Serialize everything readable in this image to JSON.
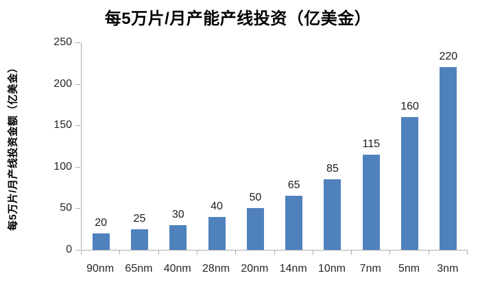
{
  "chart_data": {
    "type": "bar",
    "title": "每5万片/月产能产线投资（亿美金）",
    "ylabel": "每5万片/月产线投资金额（亿美金）",
    "xlabel": "",
    "categories": [
      "90nm",
      "65nm",
      "40nm",
      "28nm",
      "20nm",
      "14nm",
      "10nm",
      "7nm",
      "5nm",
      "3nm"
    ],
    "values": [
      20,
      25,
      30,
      40,
      50,
      65,
      85,
      115,
      160,
      220
    ],
    "ylim": [
      0,
      250
    ],
    "yticks": [
      0,
      50,
      100,
      150,
      200,
      250
    ],
    "data_labels_shown": true,
    "grid": false,
    "legend": false,
    "colors": {
      "bar_fill": "#4F81BD",
      "axis_line": "#ABABAB",
      "tick_text": "#262626",
      "title_text": "#000000"
    }
  }
}
